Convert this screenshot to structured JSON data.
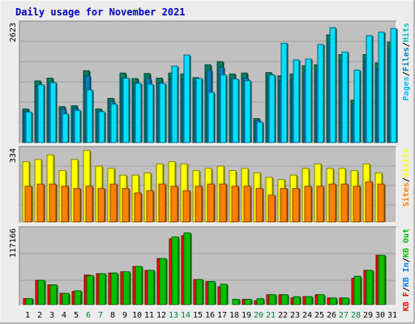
{
  "title": "Daily usage for November 2021",
  "colors": {
    "background": "#ececec",
    "panel": "#c0c0c0",
    "title": "#0000c0",
    "hits": "#00c0c0",
    "hits_face": "#00e0ff",
    "files": "#0080c0",
    "files_face": "#00ffff",
    "pages_shadow": "#008040",
    "pages": "#00c0ff",
    "visits": "#ffff00",
    "sites": "#ff8000",
    "kbin": "#00c000",
    "kbout": "#0080ff",
    "kbf": "#ff0000",
    "weekend": "#008040",
    "weekday": "#000000"
  },
  "chart_data": [
    {
      "type": "bar",
      "panel": "hits-files-pages",
      "ymax_label": "2623",
      "ymax": 2623,
      "legend": [
        {
          "text": "Hits",
          "color": "#00c0c0"
        },
        {
          "text": "/",
          "color": "#000000"
        },
        {
          "text": "Files",
          "color": "#0080c0"
        },
        {
          "text": "/",
          "color": "#000000"
        },
        {
          "text": "Pages",
          "color": "#00c0ff"
        }
      ],
      "categories": [
        "1",
        "2",
        "3",
        "4",
        "5",
        "6",
        "7",
        "8",
        "9",
        "10",
        "11",
        "12",
        "13",
        "14",
        "15",
        "16",
        "17",
        "18",
        "19",
        "20",
        "21",
        "22",
        "23",
        "24",
        "25",
        "26",
        "27",
        "28",
        "29",
        "30",
        "31"
      ],
      "series": [
        {
          "name": "Hits",
          "values": [
            730,
            1340,
            1400,
            780,
            800,
            1560,
            730,
            960,
            1510,
            1390,
            1500,
            1400,
            1510,
            1490,
            1410,
            1690,
            1760,
            1490,
            1510,
            520,
            1520,
            1450,
            1490,
            1670,
            1690,
            2340,
            1910,
            920,
            1910,
            1730,
            2180
          ]
        },
        {
          "name": "Pages",
          "values": [
            690,
            1310,
            1360,
            650,
            730,
            1190,
            700,
            870,
            1460,
            1340,
            1320,
            1340,
            1730,
            1980,
            1450,
            1140,
            1530,
            1440,
            1400,
            460,
            1530,
            2250,
            1870,
            1890,
            2220,
            2600,
            2050,
            1640,
            2420,
            2500,
            2580
          ]
        }
      ]
    },
    {
      "type": "bar",
      "panel": "visits-sites",
      "ymax_label": "334",
      "ymax": 334,
      "legend": [
        {
          "text": "Visits",
          "color": "#ffff00"
        },
        {
          "text": "/",
          "color": "#000000"
        },
        {
          "text": "Sites",
          "color": "#ff8000"
        }
      ],
      "categories": [
        "1",
        "2",
        "3",
        "4",
        "5",
        "6",
        "7",
        "8",
        "9",
        "10",
        "11",
        "12",
        "13",
        "14",
        "15",
        "16",
        "17",
        "18",
        "19",
        "20",
        "21",
        "22",
        "23",
        "24",
        "25",
        "26",
        "27",
        "28",
        "29",
        "30",
        "31"
      ],
      "series": [
        {
          "name": "Visits",
          "values": [
            270,
            280,
            300,
            230,
            280,
            320,
            250,
            240,
            210,
            210,
            220,
            260,
            270,
            260,
            230,
            240,
            250,
            230,
            240,
            220,
            200,
            190,
            210,
            240,
            260,
            240,
            240,
            230,
            260,
            220,
            0
          ]
        },
        {
          "name": "Sites",
          "values": [
            160,
            170,
            170,
            160,
            150,
            160,
            150,
            170,
            150,
            130,
            140,
            170,
            160,
            140,
            160,
            170,
            170,
            160,
            160,
            150,
            120,
            150,
            150,
            160,
            160,
            170,
            170,
            160,
            180,
            170,
            0
          ]
        }
      ]
    },
    {
      "type": "bar",
      "panel": "kbf-kbin-kbout",
      "ymax_label": "117166",
      "ymax": 117166,
      "legend": [
        {
          "text": "KB Out",
          "color": "#00c000"
        },
        {
          "text": "/",
          "color": "#000000"
        },
        {
          "text": "KB In",
          "color": "#0080ff"
        },
        {
          "text": "/",
          "color": "#000000"
        },
        {
          "text": "KB F",
          "color": "#ff0000"
        }
      ],
      "categories": [
        "1",
        "2",
        "3",
        "4",
        "5",
        "6",
        "7",
        "8",
        "9",
        "10",
        "11",
        "12",
        "13",
        "14",
        "15",
        "16",
        "17",
        "18",
        "19",
        "20",
        "21",
        "22",
        "23",
        "24",
        "25",
        "26",
        "27",
        "28",
        "29",
        "30",
        "31"
      ],
      "series": [
        {
          "name": "KB F",
          "values": [
            9000,
            37000,
            30000,
            17000,
            20000,
            45000,
            47000,
            48000,
            50000,
            58000,
            52000,
            70000,
            100000,
            105000,
            38000,
            35000,
            27000,
            0,
            8000,
            6000,
            15000,
            15000,
            10000,
            12000,
            15000,
            10000,
            10000,
            40000,
            52000,
            75000,
            0
          ]
        },
        {
          "name": "KB Out",
          "values": [
            9000,
            37000,
            30000,
            17000,
            21000,
            44000,
            47000,
            48000,
            50000,
            58000,
            52000,
            70000,
            103000,
            109000,
            38000,
            35000,
            31000,
            8000,
            8000,
            9000,
            15000,
            15000,
            12000,
            12000,
            15000,
            10000,
            10000,
            43000,
            52000,
            75000,
            0
          ]
        }
      ]
    }
  ]
}
